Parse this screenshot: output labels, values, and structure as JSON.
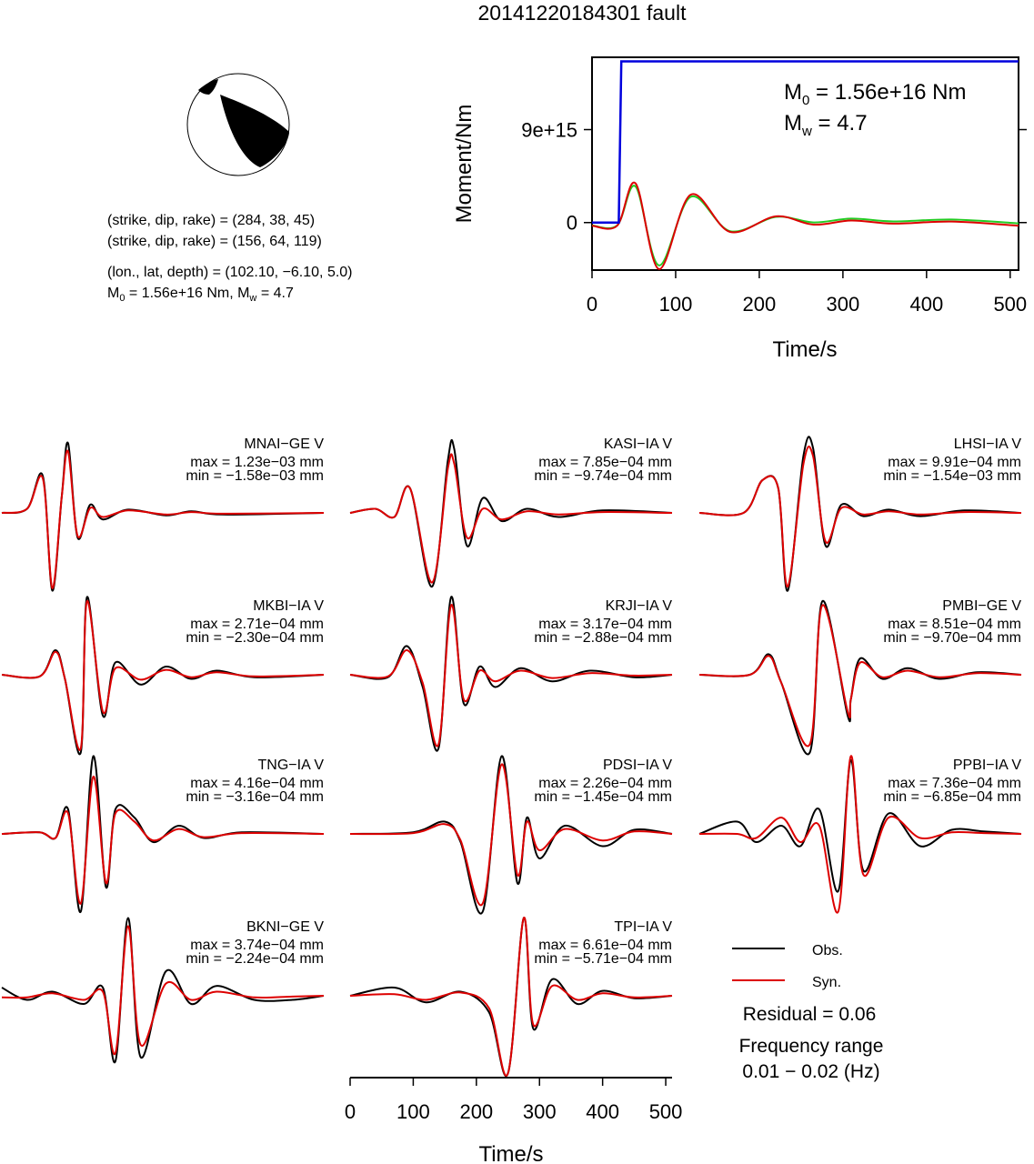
{
  "title": "20141220184301 fault",
  "mechanism": {
    "plane1": "(strike, dip, rake) = (284, 38, 45)",
    "plane2": "(strike, dip, rake) = (156, 64, 119)",
    "location": "(lon., lat, depth) = (102.10, −6.10, 5.0)",
    "m0_prefix": "M",
    "m0_sub": "0",
    "m0_mid": " = 1.56e+16 Nm, M",
    "mw_sub": "w",
    "mw_end": " = 4.7"
  },
  "stf_chart": {
    "type": "line",
    "xlabel": "Time/s",
    "ylabel": "Moment/Nm",
    "xlim": [
      0,
      510
    ],
    "ylim": [
      -4600000000000000,
      16000000000000000
    ],
    "xticks": [
      0,
      100,
      200,
      300,
      400,
      500
    ],
    "yticks": [
      {
        "value": 0,
        "label": "0"
      },
      {
        "value": 9000000000000000,
        "label": "9e+15"
      }
    ],
    "annot_m0_prefix": "M",
    "annot_m0_sub": "0",
    "annot_m0_rest": " = 1.56e+16 Nm",
    "annot_mw_prefix": "M",
    "annot_mw_sub": "w",
    "annot_mw_rest": " = 4.7",
    "colors": {
      "cumulative": "#0000dd",
      "rate_red": "#dd0000",
      "rate_green": "#22cc22"
    },
    "cumulative": {
      "x": [
        0,
        32,
        35,
        510
      ],
      "y": [
        0,
        0,
        15600000000000000,
        15600000000000000
      ]
    },
    "rate": {
      "x": [
        0,
        30,
        52,
        80,
        118,
        165,
        220,
        265,
        310,
        360,
        430,
        510
      ],
      "y": [
        -300000000000000,
        -300000000000000,
        3800000000000000,
        -4500000000000000,
        2700000000000000,
        -900000000000000,
        600000000000000,
        -200000000000000,
        200000000000000,
        -100000000000000,
        100000000000000,
        -300000000000000
      ]
    }
  },
  "chart_data": {
    "type": "line",
    "xlabel": "Time/s",
    "xlim": [
      0,
      510
    ],
    "xticks": [
      0,
      100,
      200,
      300,
      400,
      500
    ],
    "colors": {
      "obs": "#000000",
      "syn": "#dd0000"
    },
    "legend": {
      "obs": "Obs.",
      "syn": "Syn."
    },
    "residual": "Residual = 0.06",
    "freq_title": "Frequency range",
    "freq_range": "0.01 − 0.02 (Hz)",
    "stations": [
      {
        "name": "MNAI−GE V",
        "max": "max = 1.23e−03 mm",
        "min": "min = −1.58e−03 mm",
        "obs": {
          "x": [
            0,
            40,
            65,
            80,
            95,
            105,
            120,
            140,
            160,
            200,
            260,
            300,
            350,
            510
          ],
          "y": [
            0,
            0.05,
            0.45,
            -0.95,
            0.2,
            0.85,
            -0.3,
            0.1,
            -0.08,
            0.04,
            -0.03,
            0.02,
            -0.02,
            0
          ]
        },
        "syn": {
          "x": [
            0,
            40,
            65,
            80,
            95,
            105,
            120,
            140,
            160,
            200,
            260,
            300,
            350,
            510
          ],
          "y": [
            0,
            0.05,
            0.42,
            -0.92,
            0.2,
            0.75,
            -0.28,
            0.06,
            -0.05,
            0.03,
            -0.02,
            0.01,
            -0.01,
            0
          ]
        }
      },
      {
        "name": "KASI−IA V",
        "max": "max = 7.85e−04 mm",
        "min": "min = −9.74e−04 mm",
        "obs": {
          "x": [
            0,
            40,
            70,
            95,
            130,
            155,
            165,
            185,
            210,
            240,
            280,
            330,
            400,
            510
          ],
          "y": [
            0,
            0.05,
            -0.05,
            0.3,
            -0.9,
            0.65,
            0.78,
            -0.4,
            0.18,
            -0.1,
            0.05,
            -0.05,
            0.03,
            0
          ]
        },
        "syn": {
          "x": [
            0,
            40,
            70,
            95,
            130,
            155,
            165,
            185,
            210,
            240,
            280,
            330,
            400,
            510
          ],
          "y": [
            0,
            0.05,
            -0.05,
            0.3,
            -0.85,
            0.55,
            0.6,
            -0.3,
            0.05,
            -0.08,
            0.02,
            -0.02,
            0.01,
            0
          ]
        }
      },
      {
        "name": "LHSI−IA V",
        "max": "max = 9.91e−04 mm",
        "min": "min = −1.54e−03 mm",
        "obs": {
          "x": [
            0,
            70,
            100,
            125,
            140,
            165,
            180,
            200,
            225,
            260,
            300,
            350,
            420,
            510
          ],
          "y": [
            0,
            0,
            0.4,
            0.3,
            -0.95,
            0.7,
            0.8,
            -0.4,
            0.1,
            -0.04,
            0.04,
            -0.04,
            0.03,
            0
          ]
        },
        "syn": {
          "x": [
            0,
            70,
            100,
            125,
            140,
            165,
            180,
            200,
            225,
            260,
            300,
            350,
            420,
            510
          ],
          "y": [
            0,
            0,
            0.4,
            0.3,
            -0.9,
            0.6,
            0.7,
            -0.35,
            0.06,
            -0.02,
            0.02,
            -0.02,
            0.01,
            0
          ]
        }
      },
      {
        "name": "MKBI−IA V",
        "max": "max = 2.71e−04 mm",
        "min": "min = −2.30e−04 mm",
        "obs": {
          "x": [
            0,
            60,
            85,
            100,
            125,
            135,
            160,
            180,
            220,
            260,
            300,
            340,
            400,
            510
          ],
          "y": [
            0,
            -0.02,
            0.3,
            -0.05,
            -0.95,
            0.95,
            -0.5,
            0.15,
            -0.12,
            0.1,
            -0.05,
            0.05,
            -0.03,
            0
          ]
        },
        "syn": {
          "x": [
            0,
            60,
            85,
            100,
            125,
            135,
            160,
            180,
            220,
            260,
            300,
            340,
            400,
            510
          ],
          "y": [
            0,
            -0.02,
            0.28,
            -0.05,
            -0.9,
            0.9,
            -0.45,
            0.08,
            -0.06,
            0.06,
            -0.03,
            0.03,
            -0.02,
            0
          ]
        }
      },
      {
        "name": "KRJI−IA V",
        "max": "max = 3.17e−04 mm",
        "min": "min = −2.88e−04 mm",
        "obs": {
          "x": [
            0,
            60,
            90,
            115,
            140,
            160,
            180,
            205,
            230,
            270,
            320,
            380,
            450,
            510
          ],
          "y": [
            0,
            -0.03,
            0.35,
            -0.15,
            -0.9,
            0.95,
            -0.35,
            0.1,
            -0.15,
            0.08,
            -0.08,
            0.05,
            -0.03,
            0
          ]
        },
        "syn": {
          "x": [
            0,
            60,
            90,
            115,
            140,
            160,
            180,
            205,
            230,
            270,
            320,
            380,
            450,
            510
          ],
          "y": [
            0,
            -0.02,
            0.3,
            -0.1,
            -0.85,
            0.85,
            -0.3,
            0.05,
            -0.08,
            0.05,
            -0.04,
            0.02,
            -0.01,
            0
          ]
        }
      },
      {
        "name": "PMBI−GE V",
        "max": "max = 8.51e−04 mm",
        "min": "min = −9.70e−04 mm",
        "obs": {
          "x": [
            0,
            80,
            110,
            130,
            175,
            195,
            235,
            240,
            255,
            290,
            330,
            380,
            440,
            510
          ],
          "y": [
            0,
            0,
            0.25,
            -0.1,
            -0.95,
            0.9,
            -0.5,
            -0.3,
            0.2,
            -0.05,
            0.08,
            -0.05,
            0.03,
            0
          ]
        },
        "syn": {
          "x": [
            0,
            80,
            110,
            130,
            175,
            195,
            235,
            240,
            255,
            290,
            330,
            380,
            440,
            510
          ],
          "y": [
            0,
            0,
            0.23,
            -0.1,
            -0.85,
            0.85,
            -0.45,
            -0.3,
            0.15,
            -0.03,
            0.05,
            -0.03,
            0.02,
            0
          ]
        }
      },
      {
        "name": "TNG−IA V",
        "max": "max = 4.16e−04 mm",
        "min": "min = −3.16e−04 mm",
        "obs": {
          "x": [
            0,
            60,
            85,
            105,
            125,
            145,
            165,
            180,
            210,
            240,
            280,
            320,
            380,
            510
          ],
          "y": [
            0,
            0.02,
            -0.05,
            0.3,
            -0.95,
            0.95,
            -0.65,
            0.3,
            0.2,
            -0.1,
            0.1,
            -0.05,
            0.02,
            0
          ]
        },
        "syn": {
          "x": [
            0,
            60,
            85,
            105,
            125,
            145,
            165,
            180,
            210,
            240,
            280,
            320,
            380,
            510
          ],
          "y": [
            0,
            0.02,
            -0.05,
            0.25,
            -0.85,
            0.7,
            -0.6,
            0.25,
            0.15,
            -0.08,
            0.06,
            -0.04,
            0.01,
            0
          ]
        }
      },
      {
        "name": "PDSI−IA V",
        "max": "max = 2.26e−04 mm",
        "min": "min = −1.45e−04 mm",
        "obs": {
          "x": [
            0,
            100,
            150,
            175,
            210,
            240,
            265,
            280,
            300,
            340,
            400,
            450,
            510
          ],
          "y": [
            0,
            0.02,
            0.15,
            -0.1,
            -0.95,
            0.95,
            -0.6,
            0.2,
            -0.3,
            0.1,
            -0.15,
            0.05,
            0
          ]
        },
        "syn": {
          "x": [
            0,
            100,
            150,
            175,
            210,
            240,
            265,
            280,
            300,
            340,
            400,
            450,
            510
          ],
          "y": [
            0,
            0.01,
            0.12,
            -0.08,
            -0.85,
            0.85,
            -0.5,
            0.15,
            -0.2,
            0.06,
            -0.08,
            0.03,
            0
          ]
        }
      },
      {
        "name": "PPBI−IA V",
        "max": "max = 7.36e−04 mm",
        "min": "min = −6.85e−04 mm",
        "obs": {
          "x": [
            0,
            60,
            90,
            130,
            160,
            190,
            220,
            240,
            260,
            300,
            350,
            400,
            450,
            510
          ],
          "y": [
            0,
            0.15,
            -0.1,
            0.1,
            -0.15,
            0.3,
            -0.7,
            0.9,
            -0.45,
            0.25,
            -0.15,
            0.05,
            0.03,
            0
          ]
        },
        "syn": {
          "x": [
            0,
            60,
            90,
            130,
            160,
            190,
            220,
            240,
            260,
            300,
            350,
            400,
            450,
            510
          ],
          "y": [
            0,
            0,
            -0.05,
            0.2,
            -0.1,
            0.1,
            -0.95,
            0.95,
            -0.5,
            0.2,
            -0.05,
            0.02,
            0.01,
            0
          ]
        }
      },
      {
        "name": "BKNI−GE V",
        "max": "max = 3.74e−04 mm",
        "min": "min = −2.24e−04 mm",
        "obs": {
          "x": [
            0,
            40,
            80,
            130,
            160,
            180,
            200,
            220,
            260,
            300,
            340,
            400,
            460,
            510
          ],
          "y": [
            0.1,
            -0.05,
            0.05,
            -0.1,
            0.1,
            -0.8,
            0.95,
            -0.75,
            0.3,
            -0.1,
            0.12,
            -0.05,
            -0.05,
            0
          ]
        },
        "syn": {
          "x": [
            0,
            40,
            80,
            130,
            160,
            180,
            200,
            220,
            260,
            300,
            340,
            400,
            460,
            510
          ],
          "y": [
            -0.02,
            -0.02,
            0.03,
            -0.05,
            0.05,
            -0.7,
            0.85,
            -0.6,
            0.15,
            -0.05,
            0.05,
            -0.02,
            -0.01,
            0
          ]
        }
      },
      {
        "name": "TPI−IA V",
        "max": "max = 6.61e−04 mm",
        "min": "min = −5.71e−04 mm",
        "obs": {
          "x": [
            0,
            70,
            120,
            175,
            220,
            250,
            275,
            290,
            320,
            360,
            400,
            450,
            510
          ],
          "y": [
            0,
            0.1,
            -0.08,
            0.05,
            -0.2,
            -0.95,
            0.95,
            -0.4,
            0.2,
            -0.1,
            0.06,
            -0.03,
            0
          ]
        },
        "syn": {
          "x": [
            0,
            70,
            120,
            175,
            220,
            250,
            275,
            290,
            320,
            360,
            400,
            450,
            510
          ],
          "y": [
            0,
            0.02,
            -0.05,
            0.04,
            -0.15,
            -0.95,
            0.95,
            -0.35,
            0.12,
            -0.05,
            0.03,
            -0.02,
            0
          ]
        }
      }
    ]
  }
}
